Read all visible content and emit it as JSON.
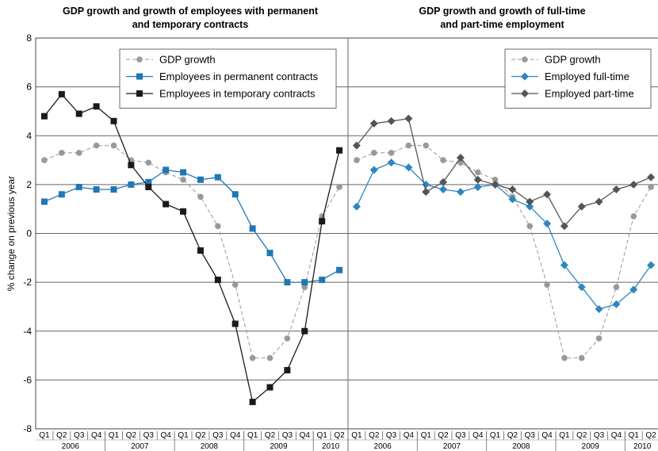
{
  "chart_data": {
    "type": "line",
    "ylabel": "% change on previous year",
    "ylim": [
      -8,
      8
    ],
    "yticks": [
      -8,
      -6,
      -4,
      -2,
      0,
      2,
      4,
      6,
      8
    ],
    "grid": true,
    "quarters": [
      "Q1",
      "Q2",
      "Q3",
      "Q4",
      "Q1",
      "Q2",
      "Q3",
      "Q4",
      "Q1",
      "Q2",
      "Q3",
      "Q4",
      "Q1",
      "Q2",
      "Q3",
      "Q4",
      "Q1",
      "Q2"
    ],
    "years": [
      {
        "label": "2006",
        "quarters": 4
      },
      {
        "label": "2007",
        "quarters": 4
      },
      {
        "label": "2008",
        "quarters": 4
      },
      {
        "label": "2009",
        "quarters": 4
      },
      {
        "label": "2010",
        "quarters": 2
      }
    ],
    "panels": [
      {
        "title_lines": [
          "GDP growth and growth of employees with permanent",
          "and temporary contracts"
        ],
        "legend_position": "top-right",
        "series": [
          {
            "name": "GDP growth",
            "color": "#999999",
            "marker": "circle",
            "dash": true,
            "values": [
              3.0,
              3.3,
              3.3,
              3.6,
              3.6,
              3.0,
              2.9,
              2.5,
              2.2,
              1.5,
              0.3,
              -2.1,
              -5.1,
              -5.1,
              -4.3,
              -2.2,
              0.7,
              1.9
            ]
          },
          {
            "name": "Employees in permanent contracts",
            "color": "#1f77b4",
            "marker": "square",
            "dash": false,
            "values": [
              1.3,
              1.6,
              1.9,
              1.8,
              1.8,
              2.0,
              2.1,
              2.6,
              2.5,
              2.2,
              2.3,
              1.6,
              0.2,
              -0.8,
              -2.0,
              -2.0,
              -1.9,
              -1.5
            ]
          },
          {
            "name": "Employees in temporary contracts",
            "color": "#1a1a1a",
            "marker": "square",
            "dash": false,
            "values": [
              4.8,
              5.7,
              4.9,
              5.2,
              4.6,
              2.8,
              1.9,
              1.2,
              0.9,
              -0.7,
              -1.9,
              -3.7,
              -6.9,
              -6.3,
              -5.6,
              -4.0,
              0.5,
              3.4
            ]
          }
        ]
      },
      {
        "title_lines": [
          "GDP growth and growth of full-time",
          "and part-time employment"
        ],
        "legend_position": "top-right",
        "series": [
          {
            "name": "GDP growth",
            "color": "#999999",
            "marker": "circle",
            "dash": true,
            "values": [
              3.0,
              3.3,
              3.3,
              3.6,
              3.6,
              3.0,
              2.9,
              2.5,
              2.2,
              1.5,
              0.3,
              -2.1,
              -5.1,
              -5.1,
              -4.3,
              -2.2,
              0.7,
              1.9
            ]
          },
          {
            "name": "Employed full-time",
            "color": "#2e86c1",
            "marker": "diamond",
            "dash": false,
            "values": [
              1.1,
              2.6,
              2.9,
              2.7,
              2.0,
              1.8,
              1.7,
              1.9,
              2.0,
              1.4,
              1.1,
              0.4,
              -1.3,
              -2.2,
              -3.1,
              -2.9,
              -2.3,
              -1.3
            ]
          },
          {
            "name": "Employed part-time",
            "color": "#555555",
            "marker": "diamond",
            "dash": false,
            "values": [
              3.6,
              4.5,
              4.6,
              4.7,
              1.7,
              2.1,
              3.1,
              2.2,
              2.0,
              1.8,
              1.3,
              1.6,
              0.3,
              1.1,
              1.3,
              1.8,
              2.0,
              2.3
            ]
          }
        ]
      }
    ]
  }
}
